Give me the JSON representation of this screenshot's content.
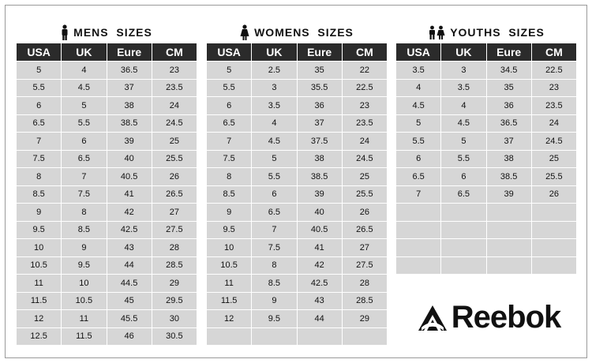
{
  "mens": {
    "title": "MENS  SIZES",
    "icon": "man-icon",
    "headers": [
      "USA",
      "UK",
      "Eure",
      "CM"
    ],
    "rows": [
      [
        "5",
        "4",
        "36.5",
        "23"
      ],
      [
        "5.5",
        "4.5",
        "37",
        "23.5"
      ],
      [
        "6",
        "5",
        "38",
        "24"
      ],
      [
        "6.5",
        "5.5",
        "38.5",
        "24.5"
      ],
      [
        "7",
        "6",
        "39",
        "25"
      ],
      [
        "7.5",
        "6.5",
        "40",
        "25.5"
      ],
      [
        "8",
        "7",
        "40.5",
        "26"
      ],
      [
        "8.5",
        "7.5",
        "41",
        "26.5"
      ],
      [
        "9",
        "8",
        "42",
        "27"
      ],
      [
        "9.5",
        "8.5",
        "42.5",
        "27.5"
      ],
      [
        "10",
        "9",
        "43",
        "28"
      ],
      [
        "10.5",
        "9.5",
        "44",
        "28.5"
      ],
      [
        "11",
        "10",
        "44.5",
        "29"
      ],
      [
        "11.5",
        "10.5",
        "45",
        "29.5"
      ],
      [
        "12",
        "11",
        "45.5",
        "30"
      ],
      [
        "12.5",
        "11.5",
        "46",
        "30.5"
      ]
    ]
  },
  "womens": {
    "title": "WOMENS  SIZES",
    "icon": "woman-icon",
    "headers": [
      "USA",
      "UK",
      "Eure",
      "CM"
    ],
    "rows": [
      [
        "5",
        "2.5",
        "35",
        "22"
      ],
      [
        "5.5",
        "3",
        "35.5",
        "22.5"
      ],
      [
        "6",
        "3.5",
        "36",
        "23"
      ],
      [
        "6.5",
        "4",
        "37",
        "23.5"
      ],
      [
        "7",
        "4.5",
        "37.5",
        "24"
      ],
      [
        "7.5",
        "5",
        "38",
        "24.5"
      ],
      [
        "8",
        "5.5",
        "38.5",
        "25"
      ],
      [
        "8.5",
        "6",
        "39",
        "25.5"
      ],
      [
        "9",
        "6.5",
        "40",
        "26"
      ],
      [
        "9.5",
        "7",
        "40.5",
        "26.5"
      ],
      [
        "10",
        "7.5",
        "41",
        "27"
      ],
      [
        "10.5",
        "8",
        "42",
        "27.5"
      ],
      [
        "11",
        "8.5",
        "42.5",
        "28"
      ],
      [
        "11.5",
        "9",
        "43",
        "28.5"
      ],
      [
        "12",
        "9.5",
        "44",
        "29"
      ],
      [
        "",
        "",
        "",
        ""
      ]
    ]
  },
  "youths": {
    "title": "YOUTHS  SIZES",
    "icon": "children-icon",
    "headers": [
      "USA",
      "UK",
      "Eure",
      "CM"
    ],
    "rows": [
      [
        "3.5",
        "3",
        "34.5",
        "22.5"
      ],
      [
        "4",
        "3.5",
        "35",
        "23"
      ],
      [
        "4.5",
        "4",
        "36",
        "23.5"
      ],
      [
        "5",
        "4.5",
        "36.5",
        "24"
      ],
      [
        "5.5",
        "5",
        "37",
        "24.5"
      ],
      [
        "6",
        "5.5",
        "38",
        "25"
      ],
      [
        "6.5",
        "6",
        "38.5",
        "25.5"
      ],
      [
        "7",
        "6.5",
        "39",
        "26"
      ],
      [
        "",
        "",
        "",
        ""
      ],
      [
        "",
        "",
        "",
        ""
      ],
      [
        "",
        "",
        "",
        ""
      ],
      [
        "",
        "",
        "",
        ""
      ]
    ]
  },
  "brand": {
    "name": "Reebok",
    "logo_icon": "reebok-delta-icon",
    "color": "#111111"
  },
  "colors": {
    "header_bg": "#2b2b2b",
    "cell_bg": "#d6d6d6",
    "header_text": "#ffffff"
  }
}
